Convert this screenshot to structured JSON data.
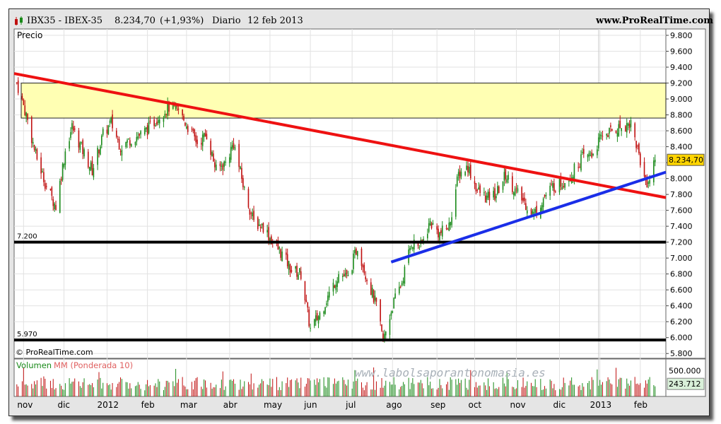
{
  "header": {
    "symbol": "IBX35 - IBEX-35",
    "last": "8.234,70",
    "change": "(+1,93%)",
    "period": "Diario",
    "date": "12 feb 2013",
    "site": "www.ProRealTime.com"
  },
  "panel_price_label": "Precio",
  "copyright": "© ProRealTime.com",
  "watermark": "www.labolsaporantonomasia.es",
  "volume_label": "Volumen",
  "volume_ma_label": "MM (Ponderada 10)",
  "colors": {
    "up": "#1a8a1a",
    "down": "#c01010",
    "resistance_line": "#ee1111",
    "support_line": "#1a2ee8",
    "zone": "#ffffb3",
    "volume_ma": "#e06060"
  },
  "chart_data": [
    {
      "type": "candlestick",
      "title": "IBX35 - IBEX-35 Diario",
      "y_axis": {
        "ticks": [
          5800,
          6000,
          6200,
          6400,
          6600,
          6800,
          7000,
          7200,
          7400,
          7600,
          7800,
          8000,
          8200,
          8400,
          8600,
          8800,
          9000,
          9200,
          9400,
          9600,
          9800
        ],
        "tick_labels": [
          "5.800",
          "6.000",
          "6.200",
          "6.400",
          "6.600",
          "6.800",
          "7.000",
          "7.200",
          "7.400",
          "7.600",
          "7.800",
          "8.000",
          "8.200",
          "8.400",
          "8.600",
          "8.800",
          "9.000",
          "9.200",
          "9.400",
          "9.600",
          "9.800"
        ],
        "ylim": [
          5740,
          9880
        ]
      },
      "x_axis": {
        "labels": [
          "nov",
          "dic",
          "2012",
          "feb",
          "mar",
          "abr",
          "may",
          "jun",
          "jul",
          "ago",
          "sep",
          "oct",
          "nov",
          "dic",
          "2013",
          "feb"
        ],
        "dates": [
          "2011-11-01",
          "2011-12-01",
          "2012-01-02",
          "2012-02-01",
          "2012-03-01",
          "2012-04-02",
          "2012-05-02",
          "2012-06-01",
          "2012-07-02",
          "2012-08-01",
          "2012-09-03",
          "2012-10-01",
          "2012-11-01",
          "2012-12-03",
          "2013-01-02",
          "2013-02-01"
        ],
        "range": [
          "2011-10-25",
          "2013-02-20"
        ]
      },
      "anchor_closes": [
        {
          "date": "2011-10-27",
          "close": 9200
        },
        {
          "date": "2011-11-03",
          "close": 8800
        },
        {
          "date": "2011-11-10",
          "close": 8300
        },
        {
          "date": "2011-11-18",
          "close": 7900
        },
        {
          "date": "2011-11-25",
          "close": 7650
        },
        {
          "date": "2011-12-02",
          "close": 8350
        },
        {
          "date": "2011-12-07",
          "close": 8650
        },
        {
          "date": "2011-12-15",
          "close": 8350
        },
        {
          "date": "2011-12-22",
          "close": 8100
        },
        {
          "date": "2011-12-30",
          "close": 8550
        },
        {
          "date": "2012-01-05",
          "close": 8700
        },
        {
          "date": "2012-01-12",
          "close": 8400
        },
        {
          "date": "2012-01-20",
          "close": 8500
        },
        {
          "date": "2012-01-27",
          "close": 8550
        },
        {
          "date": "2012-02-03",
          "close": 8650
        },
        {
          "date": "2012-02-10",
          "close": 8800
        },
        {
          "date": "2012-02-17",
          "close": 8900
        },
        {
          "date": "2012-02-24",
          "close": 8850
        },
        {
          "date": "2012-03-02",
          "close": 8650
        },
        {
          "date": "2012-03-09",
          "close": 8450
        },
        {
          "date": "2012-03-16",
          "close": 8550
        },
        {
          "date": "2012-03-23",
          "close": 8100
        },
        {
          "date": "2012-03-30",
          "close": 8200
        },
        {
          "date": "2012-04-05",
          "close": 8450
        },
        {
          "date": "2012-04-13",
          "close": 7850
        },
        {
          "date": "2012-04-20",
          "close": 7450
        },
        {
          "date": "2012-04-27",
          "close": 7400
        },
        {
          "date": "2012-05-04",
          "close": 7200
        },
        {
          "date": "2012-05-11",
          "close": 7050
        },
        {
          "date": "2012-05-18",
          "close": 6850
        },
        {
          "date": "2012-05-25",
          "close": 6800
        },
        {
          "date": "2012-06-01",
          "close": 6100
        },
        {
          "date": "2012-06-08",
          "close": 6300
        },
        {
          "date": "2012-06-15",
          "close": 6550
        },
        {
          "date": "2012-06-22",
          "close": 6800
        },
        {
          "date": "2012-06-29",
          "close": 6750
        },
        {
          "date": "2012-07-06",
          "close": 7150
        },
        {
          "date": "2012-07-13",
          "close": 6750
        },
        {
          "date": "2012-07-20",
          "close": 6400
        },
        {
          "date": "2012-07-25",
          "close": 5950
        },
        {
          "date": "2012-08-01",
          "close": 6400
        },
        {
          "date": "2012-08-08",
          "close": 6700
        },
        {
          "date": "2012-08-15",
          "close": 7200
        },
        {
          "date": "2012-08-22",
          "close": 7150
        },
        {
          "date": "2012-08-29",
          "close": 7450
        },
        {
          "date": "2012-09-05",
          "close": 7300
        },
        {
          "date": "2012-09-12",
          "close": 7400
        },
        {
          "date": "2012-09-19",
          "close": 8050
        },
        {
          "date": "2012-09-26",
          "close": 8150
        },
        {
          "date": "2012-10-03",
          "close": 7850
        },
        {
          "date": "2012-10-10",
          "close": 7750
        },
        {
          "date": "2012-10-17",
          "close": 7800
        },
        {
          "date": "2012-10-24",
          "close": 8050
        },
        {
          "date": "2012-10-31",
          "close": 7850
        },
        {
          "date": "2012-11-07",
          "close": 7700
        },
        {
          "date": "2012-11-14",
          "close": 7550
        },
        {
          "date": "2012-11-21",
          "close": 7750
        },
        {
          "date": "2012-11-28",
          "close": 7900
        },
        {
          "date": "2012-12-05",
          "close": 7950
        },
        {
          "date": "2012-12-12",
          "close": 8050
        },
        {
          "date": "2012-12-19",
          "close": 8250
        },
        {
          "date": "2012-12-27",
          "close": 8300
        },
        {
          "date": "2013-01-04",
          "close": 8550
        },
        {
          "date": "2013-01-11",
          "close": 8600
        },
        {
          "date": "2013-01-18",
          "close": 8650
        },
        {
          "date": "2013-01-25",
          "close": 8700
        },
        {
          "date": "2013-01-31",
          "close": 8300
        },
        {
          "date": "2013-02-04",
          "close": 8000
        },
        {
          "date": "2013-02-07",
          "close": 7950
        },
        {
          "date": "2013-02-12",
          "close": 8234.7
        }
      ],
      "horizontal_lines": [
        {
          "label": "7.200",
          "value": 7200
        },
        {
          "label": "5.970",
          "value": 5970
        }
      ],
      "zone": {
        "from": 8760,
        "to": 9200
      },
      "trendlines": [
        {
          "name": "resistance",
          "points": [
            {
              "date": "2011-10-25",
              "value": 9320
            },
            {
              "date": "2013-02-20",
              "value": 7760
            }
          ]
        },
        {
          "name": "support",
          "points": [
            {
              "date": "2012-07-31",
              "value": 6950
            },
            {
              "date": "2013-02-20",
              "value": 8080
            }
          ]
        }
      ],
      "last_value_label": "8.234,70"
    },
    {
      "type": "bar",
      "title": "Volumen MM (Ponderada 10)",
      "y_axis": {
        "tick_labels": [
          "500.000"
        ],
        "ticks": [
          500000
        ],
        "ylim": [
          0,
          700000
        ]
      },
      "last_ma_value_label": "243.712",
      "last_ma_value": 243712
    }
  ]
}
